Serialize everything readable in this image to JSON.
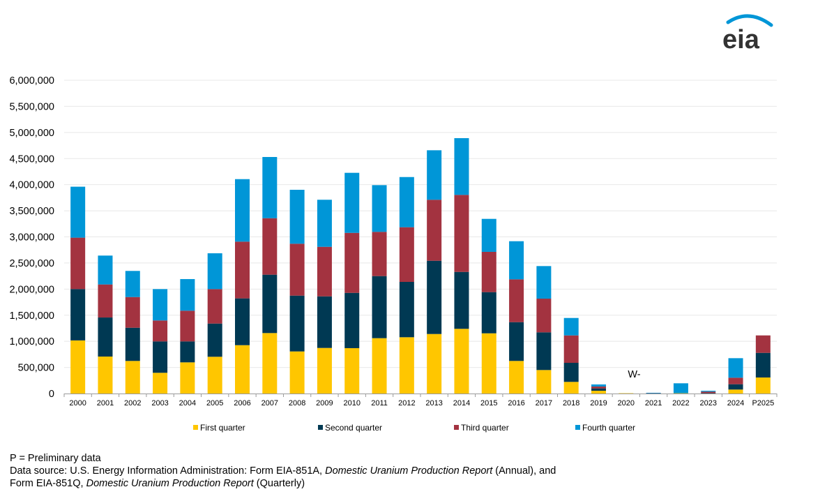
{
  "logo_text": "eia",
  "chart_data": {
    "type": "bar",
    "stacked": true,
    "title": "",
    "xlabel": "",
    "ylabel": "",
    "ylim": [
      0,
      6000000
    ],
    "yticks": [
      0,
      500000,
      1000000,
      1500000,
      2000000,
      2500000,
      3000000,
      3500000,
      4000000,
      4500000,
      5000000,
      5500000,
      6000000
    ],
    "ytick_labels": [
      "0",
      "500,000",
      "1,000,000",
      "1,500,000",
      "2,000,000",
      "2,500,000",
      "3,000,000",
      "3,500,000",
      "4,000,000",
      "4,500,000",
      "5,000,000",
      "5,500,000",
      "6,000,000"
    ],
    "grid": true,
    "legend_position": "bottom",
    "categories": [
      "2000",
      "2001",
      "2002",
      "2003",
      "2004",
      "2005",
      "2006",
      "2007",
      "2008",
      "2009",
      "2010",
      "2011",
      "2012",
      "2013",
      "2014",
      "2015",
      "2016",
      "2017",
      "2018",
      "2019",
      "2020",
      "2021",
      "2022",
      "2023",
      "2024",
      "P2025"
    ],
    "series": [
      {
        "name": "First quarter",
        "color": "#ffc600",
        "values": [
          1017000,
          708000,
          624000,
          397000,
          597000,
          704000,
          926000,
          1158000,
          806000,
          873000,
          869000,
          1060000,
          1078000,
          1140000,
          1239000,
          1153000,
          624000,
          450000,
          223000,
          53000,
          6000,
          0,
          6000,
          3000,
          76000,
          307000
        ]
      },
      {
        "name": "Second quarter",
        "color": "#003953",
        "values": [
          984000,
          748000,
          636000,
          601000,
          401000,
          636000,
          896000,
          1118000,
          1069000,
          988000,
          1059000,
          1189000,
          1060000,
          1403000,
          1090000,
          789000,
          743000,
          722000,
          365000,
          45000,
          0,
          4000,
          0,
          5000,
          102000,
          472000
        ]
      },
      {
        "name": "Third quarter",
        "color": "#a33340",
        "values": [
          984000,
          633000,
          588000,
          401000,
          588000,
          660000,
          1087000,
          1082000,
          994000,
          949000,
          1149000,
          847000,
          1047000,
          1168000,
          1475000,
          771000,
          820000,
          645000,
          525000,
          36000,
          0,
          4000,
          0,
          28000,
          125000,
          334000
        ]
      },
      {
        "name": "Fourth quarter",
        "color": "#0096d7",
        "values": [
          976000,
          553000,
          500000,
          601000,
          606000,
          686000,
          1197000,
          1172000,
          1033000,
          901000,
          1150000,
          895000,
          961000,
          948000,
          1087000,
          632000,
          730000,
          624000,
          334000,
          40000,
          0,
          6000,
          190000,
          17000,
          374000,
          0
        ]
      }
    ],
    "annotations": [
      {
        "text": "W-",
        "category": "2020"
      }
    ]
  },
  "notes": {
    "line1": "P = Preliminary data",
    "line2_prefix": "Data source: U.S. Energy Information Administration: Form EIA-851A, ",
    "line2_italic": "Domestic Uranium Production Report",
    "line2_suffix": " (Annual), and",
    "line3_prefix": "Form EIA-851Q, ",
    "line3_italic": "Domestic Uranium Production Report",
    "line3_suffix": " (Quarterly)"
  }
}
